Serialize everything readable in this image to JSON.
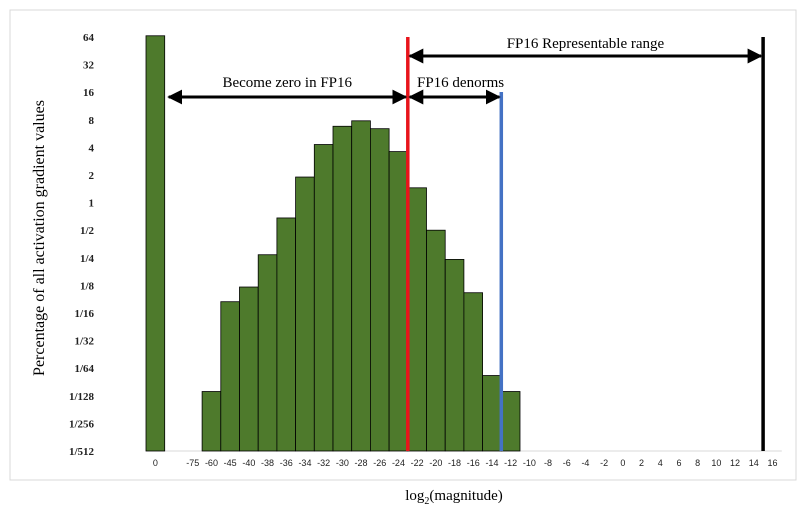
{
  "chart_data": {
    "type": "bar",
    "xlabel_main": "log",
    "xlabel_sub": "2",
    "xlabel_rest": "(magnitude)",
    "ylabel": "Percentage of all activation gradient values",
    "y_scale": "log2",
    "ytick_labels": [
      "1/512",
      "1/256",
      "1/128",
      "1/64",
      "1/32",
      "1/16",
      "1/8",
      "1/4",
      "1/2",
      "1",
      "2",
      "4",
      "8",
      "16",
      "32",
      "64"
    ],
    "categories": [
      "0",
      "",
      "-75",
      "-60",
      "-45",
      "-40",
      "-38",
      "-36",
      "-34",
      "-32",
      "-30",
      "-28",
      "-26",
      "-24",
      "-22",
      "-20",
      "-18",
      "-16",
      "-14",
      "-12",
      "-10",
      "-8",
      "-6",
      "-4",
      "-2",
      "0",
      "2",
      "4",
      "6",
      "8",
      "10",
      "12",
      "14",
      "16"
    ],
    "values": [
      66,
      0,
      0,
      0.0087,
      0.083,
      0.12,
      0.27,
      0.68,
      1.9,
      4.3,
      6.8,
      7.8,
      6.4,
      3.6,
      1.45,
      0.5,
      0.24,
      0.104,
      0.013,
      0.0087,
      0,
      0,
      0,
      0,
      0,
      0,
      0,
      0,
      0,
      0,
      0,
      0,
      0,
      0
    ],
    "bar_color": "#4e7a2c",
    "grid": false,
    "annotations": [
      {
        "id": "zero",
        "text": "Become zero in FP16"
      },
      {
        "id": "denorm",
        "text": "FP16 denorms"
      },
      {
        "id": "range",
        "text": "FP16 Representable range"
      }
    ],
    "lines": [
      {
        "id": "red",
        "after_category": "-24",
        "color": "#e8141b"
      },
      {
        "id": "blue",
        "after_category": "-14",
        "color": "#4472c4"
      },
      {
        "id": "black",
        "after_category": "14",
        "color": "#000000"
      }
    ]
  }
}
